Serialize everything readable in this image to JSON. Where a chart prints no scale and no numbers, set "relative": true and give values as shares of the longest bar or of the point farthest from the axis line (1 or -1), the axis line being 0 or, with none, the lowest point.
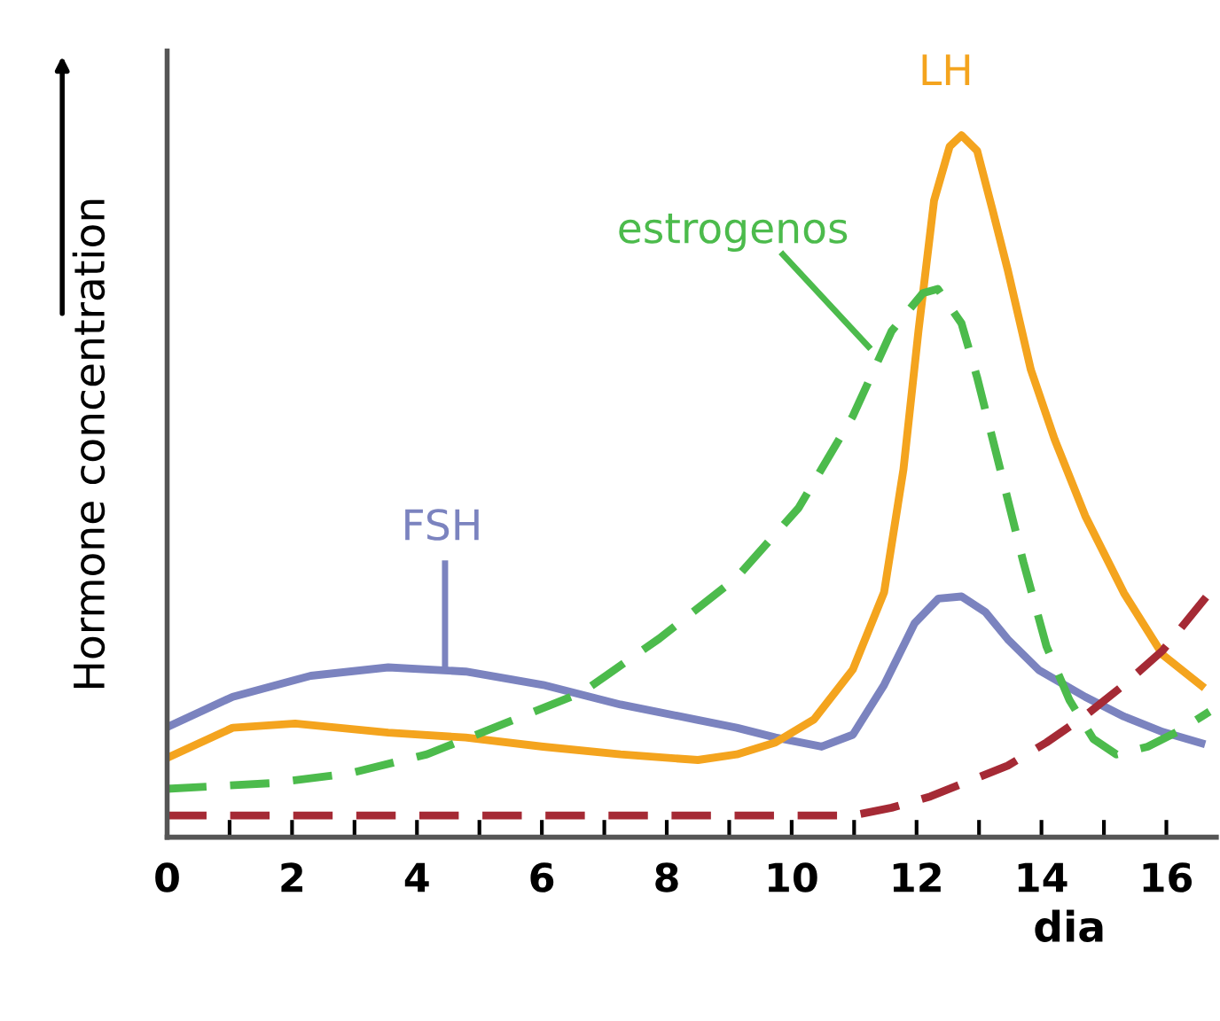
{
  "chart_data": {
    "type": "line",
    "relative": true,
    "xlabel": "dia",
    "ylabel": "Hormone concentration",
    "xlim": [
      0,
      16.8
    ],
    "xticks": [
      0,
      {
        "value": 1,
        "label": null
      },
      2,
      {
        "value": 3,
        "label": null
      },
      4,
      {
        "value": 5,
        "label": null
      },
      6,
      {
        "value": 7,
        "label": null
      },
      8,
      {
        "value": 9,
        "label": null
      },
      10,
      {
        "value": 11,
        "label": null
      },
      12,
      {
        "value": 13,
        "label": null
      },
      14,
      {
        "value": 15,
        "label": null
      },
      16
    ],
    "legend": false,
    "grid": false,
    "marker": "none",
    "series": [
      {
        "name": "FSH",
        "color": "#7b83bf",
        "line_style": "solid",
        "x": [
          0,
          1.05,
          2.3,
          3.54,
          4.78,
          6.02,
          7.26,
          8.5,
          9.12,
          9.74,
          10.48,
          10.98,
          11.48,
          11.97,
          12.35,
          12.72,
          13.1,
          13.46,
          13.96,
          14.7,
          15.32,
          15.94,
          16.56
        ],
        "values": [
          0.157,
          0.2,
          0.23,
          0.242,
          0.236,
          0.217,
          0.189,
          0.167,
          0.156,
          0.142,
          0.129,
          0.146,
          0.217,
          0.305,
          0.34,
          0.343,
          0.321,
          0.282,
          0.238,
          0.2,
          0.172,
          0.15,
          0.134
        ]
      },
      {
        "name": "LH",
        "color": "#f4a41e",
        "line_style": "solid",
        "x": [
          0,
          1.05,
          2.05,
          3.54,
          4.78,
          6.02,
          7.26,
          8.5,
          9.12,
          9.74,
          10.36,
          10.98,
          11.48,
          11.79,
          12.03,
          12.28,
          12.53,
          12.72,
          12.97,
          13.21,
          13.46,
          13.83,
          14.21,
          14.7,
          15.32,
          15.94,
          16.56
        ],
        "values": [
          0.113,
          0.156,
          0.162,
          0.149,
          0.142,
          0.129,
          0.118,
          0.11,
          0.118,
          0.135,
          0.168,
          0.239,
          0.349,
          0.524,
          0.721,
          0.907,
          0.984,
          1.0,
          0.978,
          0.896,
          0.808,
          0.666,
          0.567,
          0.458,
          0.348,
          0.26,
          0.216
        ]
      },
      {
        "name": "estrogenos",
        "color": "#4cbb4c",
        "line_style": "dashed",
        "x": [
          0,
          1.67,
          2.92,
          4.16,
          5.4,
          6.64,
          7.88,
          9.12,
          10.11,
          10.98,
          11.6,
          12.1,
          12.34,
          12.72,
          12.97,
          13.34,
          13.71,
          14.08,
          14.45,
          14.83,
          15.2,
          15.7,
          16.19,
          16.69
        ],
        "values": [
          0.069,
          0.077,
          0.091,
          0.118,
          0.162,
          0.206,
          0.283,
          0.37,
          0.469,
          0.6,
          0.721,
          0.775,
          0.781,
          0.732,
          0.655,
          0.524,
          0.392,
          0.272,
          0.195,
          0.14,
          0.118,
          0.129,
          0.151,
          0.179
        ]
      },
      {
        "color": "#a52a35",
        "line_style": "dashed",
        "x": [
          0,
          5,
          10.98,
          11.6,
          12.22,
          12.84,
          13.46,
          14.08,
          14.7,
          15.32,
          15.94,
          16.69
        ],
        "values": [
          0.031,
          0.031,
          0.031,
          0.042,
          0.058,
          0.08,
          0.102,
          0.135,
          0.173,
          0.217,
          0.266,
          0.348
        ]
      }
    ]
  }
}
